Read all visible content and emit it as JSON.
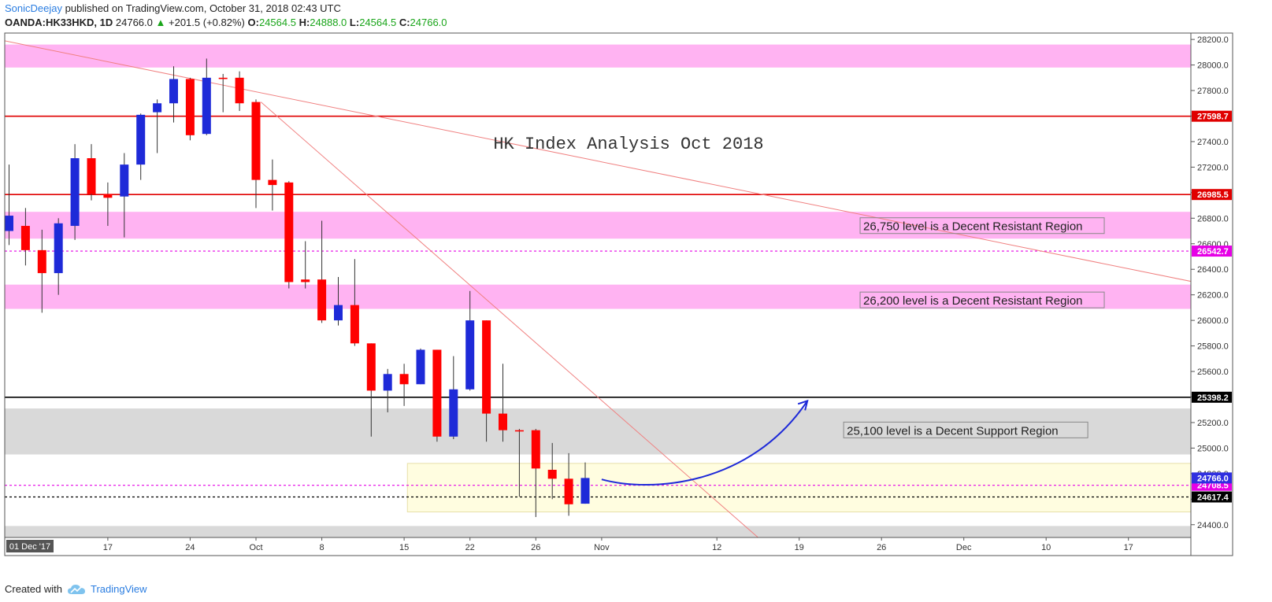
{
  "header": {
    "author": "SonicDeejay",
    "published": "published on TradingView.com, October 31, 2018 02:43 UTC",
    "symbol": "OANDA:HK33HKD, 1D",
    "last": "24766.0",
    "change": "+201.5 (+0.82%)",
    "o_label": "O:",
    "o_value": "24564.5",
    "h_label": "H:",
    "h_value": "24888.0",
    "l_label": "L:",
    "l_value": "24564.5",
    "c_label": "C:",
    "c_value": "24766.0"
  },
  "footer": {
    "created_with": "Created with",
    "brand": "TradingView",
    "logo_icon": "tradingview-cloud-icon"
  },
  "chart_data": {
    "type": "candlestick",
    "title": "HK Index Analysis Oct 2018",
    "y_range": [
      24300,
      28250
    ],
    "y_ticks": [
      24400,
      24600,
      24800,
      25000,
      25200,
      25400,
      25600,
      25800,
      26000,
      26200,
      26400,
      26600,
      26800,
      27000,
      27200,
      27400,
      27600,
      27800,
      28000,
      28200
    ],
    "x_tick_labels": [
      {
        "label": "01 Dec '17",
        "x": 0,
        "boxed": true
      },
      {
        "label": "17",
        "x": 6
      },
      {
        "label": "24",
        "x": 11
      },
      {
        "label": "Oct",
        "x": 15
      },
      {
        "label": "8",
        "x": 19
      },
      {
        "label": "15",
        "x": 24
      },
      {
        "label": "22",
        "x": 28
      },
      {
        "label": "26",
        "x": 32
      },
      {
        "label": "Nov",
        "x": 36
      },
      {
        "label": "12",
        "x": 43
      },
      {
        "label": "19",
        "x": 48
      },
      {
        "label": "26",
        "x": 53
      },
      {
        "label": "Dec",
        "x": 58
      },
      {
        "label": "10",
        "x": 63
      },
      {
        "label": "17",
        "x": 68
      }
    ],
    "candles": [
      {
        "x": 0,
        "o": 26700,
        "h": 27220,
        "l": 26590,
        "c": 26820
      },
      {
        "x": 1,
        "o": 26740,
        "h": 26880,
        "l": 26430,
        "c": 26550
      },
      {
        "x": 2,
        "o": 26550,
        "h": 26710,
        "l": 26060,
        "c": 26370
      },
      {
        "x": 3,
        "o": 26370,
        "h": 26800,
        "l": 26200,
        "c": 26760
      },
      {
        "x": 4,
        "o": 26740,
        "h": 27380,
        "l": 26630,
        "c": 27270
      },
      {
        "x": 5,
        "o": 27270,
        "h": 27380,
        "l": 26940,
        "c": 26990
      },
      {
        "x": 6,
        "o": 26990,
        "h": 27080,
        "l": 26740,
        "c": 26960
      },
      {
        "x": 7,
        "o": 26970,
        "h": 27310,
        "l": 26650,
        "c": 27220
      },
      {
        "x": 8,
        "o": 27220,
        "h": 27620,
        "l": 27100,
        "c": 27610
      },
      {
        "x": 9,
        "o": 27630,
        "h": 27730,
        "l": 27310,
        "c": 27700
      },
      {
        "x": 10,
        "o": 27700,
        "h": 27990,
        "l": 27550,
        "c": 27890
      },
      {
        "x": 11,
        "o": 27890,
        "h": 27900,
        "l": 27410,
        "c": 27450
      },
      {
        "x": 12,
        "o": 27460,
        "h": 28050,
        "l": 27450,
        "c": 27900
      },
      {
        "x": 13,
        "o": 27900,
        "h": 27930,
        "l": 27630,
        "c": 27890
      },
      {
        "x": 14,
        "o": 27900,
        "h": 27950,
        "l": 27640,
        "c": 27700
      },
      {
        "x": 15,
        "o": 27710,
        "h": 27730,
        "l": 26880,
        "c": 27100
      },
      {
        "x": 16,
        "o": 27100,
        "h": 27260,
        "l": 26860,
        "c": 27060
      },
      {
        "x": 17,
        "o": 27080,
        "h": 27090,
        "l": 26250,
        "c": 26300
      },
      {
        "x": 18,
        "o": 26320,
        "h": 26620,
        "l": 26250,
        "c": 26300
      },
      {
        "x": 19,
        "o": 26320,
        "h": 26780,
        "l": 25980,
        "c": 26000
      },
      {
        "x": 20,
        "o": 26000,
        "h": 26340,
        "l": 25960,
        "c": 26120
      },
      {
        "x": 21,
        "o": 26120,
        "h": 26480,
        "l": 25800,
        "c": 25820
      },
      {
        "x": 22,
        "o": 25820,
        "h": 25820,
        "l": 25090,
        "c": 25450
      },
      {
        "x": 23,
        "o": 25450,
        "h": 25620,
        "l": 25280,
        "c": 25580
      },
      {
        "x": 24,
        "o": 25580,
        "h": 25660,
        "l": 25330,
        "c": 25500
      },
      {
        "x": 25,
        "o": 25500,
        "h": 25780,
        "l": 25500,
        "c": 25770
      },
      {
        "x": 26,
        "o": 25770,
        "h": 25770,
        "l": 25050,
        "c": 25090
      },
      {
        "x": 27,
        "o": 25090,
        "h": 25720,
        "l": 25070,
        "c": 25460
      },
      {
        "x": 28,
        "o": 25460,
        "h": 26230,
        "l": 25450,
        "c": 26000
      },
      {
        "x": 29,
        "o": 26000,
        "h": 26000,
        "l": 25050,
        "c": 25270
      },
      {
        "x": 30,
        "o": 25270,
        "h": 25660,
        "l": 25050,
        "c": 25140
      },
      {
        "x": 31,
        "o": 25140,
        "h": 25150,
        "l": 24620,
        "c": 25130
      },
      {
        "x": 32,
        "o": 25140,
        "h": 25150,
        "l": 24460,
        "c": 24840
      },
      {
        "x": 33,
        "o": 24830,
        "h": 25040,
        "l": 24600,
        "c": 24760
      },
      {
        "x": 34,
        "o": 24760,
        "h": 24960,
        "l": 24470,
        "c": 24560
      },
      {
        "x": 35,
        "o": 24564.5,
        "h": 24888,
        "l": 24564.5,
        "c": 24766
      }
    ],
    "zones": [
      {
        "name": "resistance-28050",
        "from": 27980,
        "to": 28160,
        "color": "#ffb3f2"
      },
      {
        "name": "resistance-26750",
        "from": 26640,
        "to": 26850,
        "color": "#ffb3f2"
      },
      {
        "name": "resistance-26200",
        "from": 26090,
        "to": 26280,
        "color": "#ffb3f2"
      },
      {
        "name": "support-25100",
        "from": 24950,
        "to": 25310,
        "color": "#d9d9d9"
      },
      {
        "name": "support-24300",
        "from": 24300,
        "to": 24390,
        "color": "#d9d9d9"
      }
    ],
    "horizontal_lines": [
      {
        "value": 27598.7,
        "label": "27598.7",
        "color": "#e00000",
        "style": "solid"
      },
      {
        "value": 26985.5,
        "label": "26985.5",
        "color": "#e00000",
        "style": "solid"
      },
      {
        "value": 26542.7,
        "label": "26542.7",
        "color": "#e600e6",
        "style": "dashed"
      },
      {
        "value": 25398.2,
        "label": "25398.2",
        "color": "#000000",
        "style": "solid"
      },
      {
        "value": 24708.5,
        "label": "24708.5",
        "color": "#e600e6",
        "style": "dashed"
      },
      {
        "value": 24617.4,
        "label": "24617.4",
        "color": "#000000",
        "style": "dashed"
      }
    ],
    "price_label": {
      "value": 24766.0,
      "label": "24766.0",
      "color": "#2f2fe0"
    },
    "annotations": [
      {
        "text": "26,750 level is a Decent Resistant Region",
        "x": 51.7,
        "y": 26742
      },
      {
        "text": "26,200 level is a Decent Resistant Region",
        "x": 51.7,
        "y": 26160
      },
      {
        "text": "25,100 level is a Decent Support Region",
        "x": 50.7,
        "y": 25142
      }
    ],
    "trend_lines": [
      {
        "name": "long-trendline",
        "from": {
          "x": -0.3,
          "y": 28190
        },
        "to": {
          "x": 72,
          "y": 26300
        }
      },
      {
        "name": "steep-trendline",
        "from": {
          "x": 15.3,
          "y": 27710
        },
        "to": {
          "x": 45.5,
          "y": 24300
        }
      }
    ],
    "projection_box": {
      "x_from": 24.2,
      "x_to": 72,
      "y_from": 24500,
      "y_to": 24880,
      "color": "#fffde0"
    },
    "arrow": {
      "from": {
        "x": 36,
        "y": 24755
      },
      "ctrl1": {
        "x": 39,
        "y": 24650
      },
      "ctrl2": {
        "x": 45,
        "y": 24700
      },
      "to": {
        "x": 48.5,
        "y": 25370
      },
      "color": "#1e2ad8"
    },
    "up_color": "#1e2ad8",
    "down_color": "#ff0000"
  }
}
